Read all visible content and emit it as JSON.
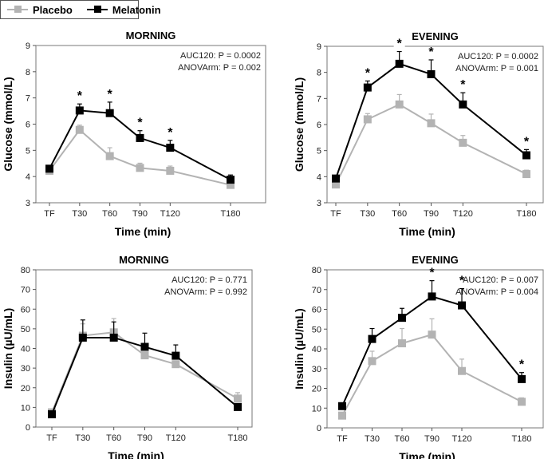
{
  "legend": [
    {
      "name": "Placebo",
      "color": "#b3b3b3"
    },
    {
      "name": "Melatonin",
      "color": "#000000"
    }
  ],
  "chart_data": [
    {
      "type": "line",
      "title": "MORNING",
      "xlabel": "Time (min)",
      "ylabel": "Glucose (mmol/L)",
      "ylim": [
        3,
        9
      ],
      "yticks": [
        3,
        4,
        5,
        6,
        7,
        8,
        9
      ],
      "categories": [
        "TF",
        "T30",
        "T60",
        "T90",
        "T120",
        "T180"
      ],
      "x_minutes": [
        0,
        30,
        60,
        90,
        120,
        180
      ],
      "annotations": [
        "AUC120: P = 0.0002",
        "ANOVArm: P = 0.002"
      ],
      "significant": [
        "T30",
        "T60",
        "T90",
        "T120"
      ],
      "series": [
        {
          "name": "Placebo",
          "values": [
            4.22,
            5.78,
            4.78,
            4.33,
            4.22,
            3.68
          ],
          "errors": [
            0.08,
            0.18,
            0.32,
            0.18,
            0.18,
            0.08
          ]
        },
        {
          "name": "Melatonin",
          "values": [
            4.3,
            6.52,
            6.42,
            5.47,
            5.1,
            3.88
          ],
          "errors": [
            0.05,
            0.25,
            0.42,
            0.28,
            0.28,
            0.18
          ]
        }
      ]
    },
    {
      "type": "line",
      "title": "EVENING",
      "xlabel": "Time (min)",
      "ylabel": "Glucose (mmol/L)",
      "ylim": [
        3,
        9
      ],
      "yticks": [
        3,
        4,
        5,
        6,
        7,
        8,
        9
      ],
      "categories": [
        "TF",
        "T30",
        "T60",
        "T90",
        "T120",
        "T180"
      ],
      "x_minutes": [
        0,
        30,
        60,
        90,
        120,
        180
      ],
      "annotations": [
        "AUC120: P = 0.0002",
        "ANOVArm: P = 0.001"
      ],
      "significant": [
        "T30",
        "T60",
        "T90",
        "T120",
        "T180"
      ],
      "series": [
        {
          "name": "Placebo",
          "values": [
            3.7,
            6.2,
            6.77,
            6.05,
            5.3,
            4.1
          ],
          "errors": [
            0.1,
            0.22,
            0.38,
            0.35,
            0.28,
            0.15
          ]
        },
        {
          "name": "Melatonin",
          "values": [
            3.93,
            7.42,
            8.33,
            7.93,
            6.77,
            4.82
          ],
          "errors": [
            0.1,
            0.25,
            0.47,
            0.55,
            0.45,
            0.22
          ]
        }
      ]
    },
    {
      "type": "line",
      "title": "MORNING",
      "xlabel": "Time (min)",
      "ylabel": "Insulin (µU/mL)",
      "ylim": [
        0,
        80
      ],
      "yticks": [
        0,
        10,
        20,
        30,
        40,
        50,
        60,
        70,
        80
      ],
      "categories": [
        "TF",
        "T30",
        "T60",
        "T90",
        "T120",
        "T180"
      ],
      "x_minutes": [
        0,
        30,
        60,
        90,
        120,
        180
      ],
      "annotations": [
        "AUC120: P = 0.771",
        "ANOVArm: P = 0.992"
      ],
      "significant": [],
      "series": [
        {
          "name": "Placebo",
          "values": [
            7.5,
            46.5,
            48.2,
            36.5,
            32,
            14.5
          ],
          "errors": [
            0.5,
            6,
            7,
            0.5,
            0.5,
            3
          ]
        },
        {
          "name": "Melatonin",
          "values": [
            6.5,
            45.5,
            45.5,
            40.8,
            36.3,
            10.2
          ],
          "errors": [
            0,
            9,
            8,
            7,
            5.5,
            0
          ]
        }
      ]
    },
    {
      "type": "line",
      "title": "EVENING",
      "xlabel": "Time (min)",
      "ylabel": "Insulin (µU/mL)",
      "ylim": [
        0,
        80
      ],
      "yticks": [
        0,
        10,
        20,
        30,
        40,
        50,
        60,
        70,
        80
      ],
      "categories": [
        "TF",
        "T30",
        "T60",
        "T90",
        "T120",
        "T180"
      ],
      "x_minutes": [
        0,
        30,
        60,
        90,
        120,
        180
      ],
      "annotations": [
        "AUC120: P = 0.007",
        "ANOVArm: P = 0.004"
      ],
      "significant": [
        "T90",
        "T120",
        "T180"
      ],
      "series": [
        {
          "name": "Placebo",
          "values": [
            6.2,
            33.8,
            42.8,
            47.2,
            28.8,
            13.2
          ],
          "errors": [
            0.5,
            5,
            7.5,
            8,
            6,
            2
          ]
        },
        {
          "name": "Melatonin",
          "values": [
            11,
            45,
            55.7,
            66.5,
            62,
            24.7
          ],
          "errors": [
            0,
            5.3,
            4.8,
            8,
            8.5,
            3.3
          ]
        }
      ]
    }
  ]
}
